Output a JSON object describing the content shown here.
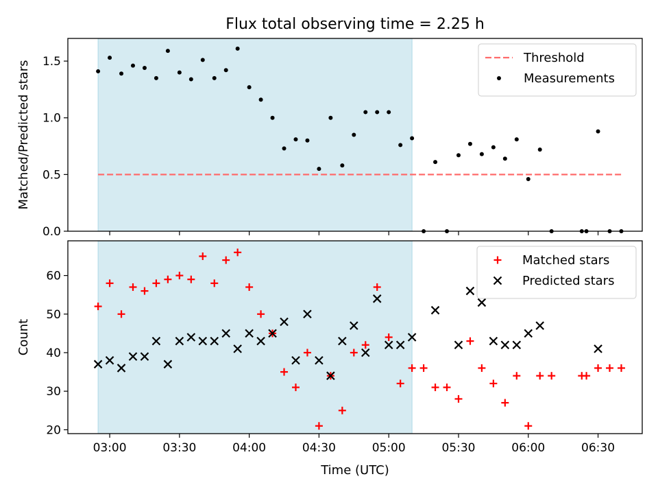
{
  "title": "Flux total observing time = 2.25 h",
  "xlabel": "Time (UTC)",
  "x_ticks": [
    "03:00",
    "03:30",
    "04:00",
    "04:30",
    "05:00",
    "05:30",
    "06:00",
    "06:30"
  ],
  "x_tick_minutes": [
    180,
    210,
    240,
    270,
    300,
    330,
    360,
    390
  ],
  "x_range_minutes": [
    162,
    409
  ],
  "highlight_span": {
    "start": "02:55",
    "end": "05:10",
    "color": "#add8e6"
  },
  "colors": {
    "threshold": "#ff6b6b",
    "measurements": "#000000",
    "matched": "#ff0000",
    "predicted": "#000000",
    "highlight": "#add8e6"
  },
  "chart_data": [
    {
      "type": "scatter",
      "title": "Flux total observing time = 2.25 h",
      "xlabel": "",
      "ylabel": "Matched/Predicted stars",
      "ylim": [
        0,
        1.7
      ],
      "yticks": [
        0.0,
        0.5,
        1.0,
        1.5
      ],
      "ytick_labels": [
        "0.0",
        "0.5",
        "1.0",
        "1.5"
      ],
      "legend": {
        "position": "top-right",
        "entries": [
          "Threshold",
          "Measurements"
        ]
      },
      "series": [
        {
          "name": "Threshold",
          "kind": "dashed-line",
          "x": [
            "02:55",
            "06:40"
          ],
          "y": [
            0.5,
            0.5
          ]
        },
        {
          "name": "Measurements",
          "kind": "dots",
          "x": [
            "02:55",
            "03:00",
            "03:05",
            "03:10",
            "03:15",
            "03:20",
            "03:25",
            "03:30",
            "03:35",
            "03:40",
            "03:45",
            "03:50",
            "03:55",
            "04:00",
            "04:05",
            "04:10",
            "04:15",
            "04:20",
            "04:25",
            "04:30",
            "04:35",
            "04:40",
            "04:45",
            "04:50",
            "04:55",
            "05:00",
            "05:05",
            "05:10",
            "05:15",
            "05:20",
            "05:25",
            "05:30",
            "05:35",
            "05:40",
            "05:45",
            "05:50",
            "05:55",
            "06:00",
            "06:05",
            "06:10",
            "06:23",
            "06:25",
            "06:30",
            "06:35",
            "06:40"
          ],
          "y": [
            1.41,
            1.53,
            1.39,
            1.46,
            1.44,
            1.35,
            1.59,
            1.4,
            1.34,
            1.51,
            1.35,
            1.42,
            1.61,
            1.27,
            1.16,
            1.0,
            0.73,
            0.81,
            0.8,
            0.55,
            1.0,
            0.58,
            0.85,
            1.05,
            1.05,
            1.05,
            0.76,
            0.82,
            0.0,
            0.61,
            0.0,
            0.67,
            0.77,
            0.68,
            0.74,
            0.64,
            0.81,
            0.46,
            0.72,
            0.0,
            0.0,
            0.0,
            0.88,
            0.0,
            0.0
          ]
        }
      ]
    },
    {
      "type": "scatter",
      "xlabel": "Time (UTC)",
      "ylabel": "Count",
      "ylim": [
        19,
        69
      ],
      "yticks": [
        20,
        30,
        40,
        50,
        60
      ],
      "ytick_labels": [
        "20",
        "30",
        "40",
        "50",
        "60"
      ],
      "legend": {
        "position": "top-right",
        "entries": [
          "Matched stars",
          "Predicted stars"
        ]
      },
      "series": [
        {
          "name": "Matched stars",
          "marker": "plus",
          "x": [
            "02:55",
            "03:00",
            "03:05",
            "03:10",
            "03:15",
            "03:20",
            "03:25",
            "03:30",
            "03:35",
            "03:40",
            "03:45",
            "03:50",
            "03:55",
            "04:00",
            "04:05",
            "04:10",
            "04:15",
            "04:20",
            "04:25",
            "04:30",
            "04:35",
            "04:40",
            "04:45",
            "04:50",
            "04:55",
            "05:00",
            "05:05",
            "05:10",
            "05:15",
            "05:20",
            "05:25",
            "05:30",
            "05:35",
            "05:40",
            "05:45",
            "05:50",
            "05:55",
            "06:00",
            "06:05",
            "06:10",
            "06:23",
            "06:25",
            "06:30",
            "06:35",
            "06:40"
          ],
          "y": [
            52,
            58,
            50,
            57,
            56,
            58,
            59,
            60,
            59,
            65,
            58,
            64,
            66,
            57,
            50,
            45,
            35,
            31,
            40,
            21,
            34,
            25,
            40,
            42,
            57,
            44,
            32,
            36,
            36,
            31,
            31,
            28,
            43,
            36,
            32,
            27,
            34,
            21,
            34,
            34,
            34,
            34,
            36,
            36,
            36
          ]
        },
        {
          "name": "Predicted stars",
          "marker": "x",
          "x": [
            "02:55",
            "03:00",
            "03:05",
            "03:10",
            "03:15",
            "03:20",
            "03:25",
            "03:30",
            "03:35",
            "03:40",
            "03:45",
            "03:50",
            "03:55",
            "04:00",
            "04:05",
            "04:10",
            "04:15",
            "04:20",
            "04:25",
            "04:30",
            "04:35",
            "04:40",
            "04:45",
            "04:50",
            "04:55",
            "05:00",
            "05:05",
            "05:10",
            "05:20",
            "05:30",
            "05:35",
            "05:40",
            "05:45",
            "05:50",
            "05:55",
            "06:00",
            "06:05",
            "06:30"
          ],
          "y": [
            37,
            38,
            36,
            39,
            39,
            43,
            37,
            43,
            44,
            43,
            43,
            45,
            41,
            45,
            43,
            45,
            48,
            38,
            50,
            38,
            34,
            43,
            47,
            40,
            54,
            42,
            42,
            44,
            51,
            42,
            56,
            53,
            43,
            42,
            42,
            45,
            47,
            41
          ]
        }
      ]
    }
  ]
}
